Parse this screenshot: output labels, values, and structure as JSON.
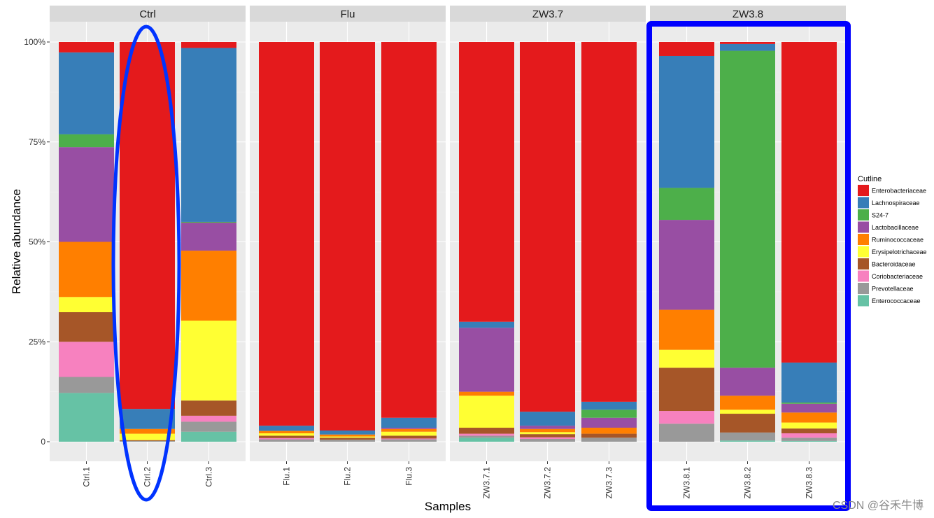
{
  "chart_data": {
    "type": "bar",
    "stacked": true,
    "xlabel": "Samples",
    "ylabel": "Relative abundance",
    "ylim": [
      0,
      1
    ],
    "y_ticks": [
      {
        "value": 0,
        "label": "0"
      },
      {
        "value": 0.25,
        "label": "25%"
      },
      {
        "value": 0.5,
        "label": "50%"
      },
      {
        "value": 0.75,
        "label": "75%"
      },
      {
        "value": 1,
        "label": "100%"
      }
    ],
    "legend": {
      "title": "Cutline",
      "position": "right",
      "entries": [
        {
          "name": "Enterobacteriaceae",
          "color": "#e41a1c"
        },
        {
          "name": "Lachnospiraceae",
          "color": "#377eb8"
        },
        {
          "name": "S24-7",
          "color": "#4daf4a"
        },
        {
          "name": "Lactobacillaceae",
          "color": "#984ea3"
        },
        {
          "name": "Ruminococcaceae",
          "color": "#ff7f00"
        },
        {
          "name": "Erysipelotrichaceae",
          "color": "#ffff33"
        },
        {
          "name": "Bacteroidaceae",
          "color": "#a65628"
        },
        {
          "name": "Coriobacteriaceae",
          "color": "#f781bf"
        },
        {
          "name": "Prevotellaceae",
          "color": "#999999"
        },
        {
          "name": "Enterococcaceae",
          "color": "#66c2a5"
        }
      ]
    },
    "stack_order_bottom_to_top": [
      "Enterococcaceae",
      "Prevotellaceae",
      "Coriobacteriaceae",
      "Bacteroidaceae",
      "Erysipelotrichaceae",
      "Ruminococcaceae",
      "Lactobacillaceae",
      "S24-7",
      "Lachnospiraceae",
      "Enterobacteriaceae"
    ],
    "facets": [
      {
        "name": "Ctrl",
        "samples": [
          {
            "name": "Ctrl.1",
            "values": {
              "Enterobacteriaceae": 0.026,
              "Lachnospiraceae": 0.205,
              "S24-7": 0.032,
              "Lactobacillaceae": 0.237,
              "Ruminococcaceae": 0.138,
              "Erysipelotrichaceae": 0.038,
              "Bacteroidaceae": 0.074,
              "Coriobacteriaceae": 0.088,
              "Prevotellaceae": 0.04,
              "Enterococcaceae": 0.122
            }
          },
          {
            "name": "Ctrl.2",
            "values": {
              "Enterobacteriaceae": 0.918,
              "Lachnospiraceae": 0.05,
              "S24-7": 0.0,
              "Lactobacillaceae": 0.0,
              "Ruminococcaceae": 0.012,
              "Erysipelotrichaceae": 0.016,
              "Bacteroidaceae": 0.002,
              "Coriobacteriaceae": 0.0,
              "Prevotellaceae": 0.002,
              "Enterococcaceae": 0.0
            }
          },
          {
            "name": "Ctrl.3",
            "values": {
              "Enterobacteriaceae": 0.015,
              "Lachnospiraceae": 0.435,
              "S24-7": 0.002,
              "Lactobacillaceae": 0.07,
              "Ruminococcaceae": 0.175,
              "Erysipelotrichaceae": 0.2,
              "Bacteroidaceae": 0.038,
              "Coriobacteriaceae": 0.015,
              "Prevotellaceae": 0.025,
              "Enterococcaceae": 0.025
            }
          }
        ]
      },
      {
        "name": "Flu",
        "samples": [
          {
            "name": "Flu.1",
            "values": {
              "Enterobacteriaceae": 0.96,
              "Lachnospiraceae": 0.013,
              "S24-7": 0.0,
              "Lactobacillaceae": 0.0,
              "Ruminococcaceae": 0.006,
              "Erysipelotrichaceae": 0.006,
              "Bacteroidaceae": 0.006,
              "Coriobacteriaceae": 0.003,
              "Prevotellaceae": 0.006,
              "Enterococcaceae": 0.0
            }
          },
          {
            "name": "Flu.2",
            "values": {
              "Enterobacteriaceae": 0.972,
              "Lachnospiraceae": 0.01,
              "S24-7": 0.0,
              "Lactobacillaceae": 0.0,
              "Ruminococcaceae": 0.005,
              "Erysipelotrichaceae": 0.003,
              "Bacteroidaceae": 0.005,
              "Coriobacteriaceae": 0.0,
              "Prevotellaceae": 0.005,
              "Enterococcaceae": 0.0
            }
          },
          {
            "name": "Flu.3",
            "values": {
              "Enterobacteriaceae": 0.94,
              "Lachnospiraceae": 0.025,
              "S24-7": 0.0,
              "Lactobacillaceae": 0.003,
              "Ruminococcaceae": 0.007,
              "Erysipelotrichaceae": 0.01,
              "Bacteroidaceae": 0.007,
              "Coriobacteriaceae": 0.002,
              "Prevotellaceae": 0.006,
              "Enterococcaceae": 0.0
            }
          }
        ]
      },
      {
        "name": "ZW3.7",
        "samples": [
          {
            "name": "ZW3.7.1",
            "values": {
              "Enterobacteriaceae": 0.7,
              "Lachnospiraceae": 0.015,
              "S24-7": 0.0,
              "Lactobacillaceae": 0.16,
              "Ruminococcaceae": 0.01,
              "Erysipelotrichaceae": 0.08,
              "Bacteroidaceae": 0.015,
              "Coriobacteriaceae": 0.005,
              "Prevotellaceae": 0.005,
              "Enterococcaceae": 0.01
            }
          },
          {
            "name": "ZW3.7.2",
            "values": {
              "Enterobacteriaceae": 0.925,
              "Lachnospiraceae": 0.035,
              "S24-7": 0.0,
              "Lactobacillaceae": 0.008,
              "Ruminococcaceae": 0.008,
              "Erysipelotrichaceae": 0.005,
              "Bacteroidaceae": 0.008,
              "Coriobacteriaceae": 0.004,
              "Prevotellaceae": 0.007,
              "Enterococcaceae": 0.0
            }
          },
          {
            "name": "ZW3.7.3",
            "values": {
              "Enterobacteriaceae": 0.9,
              "Lachnospiraceae": 0.02,
              "S24-7": 0.02,
              "Lactobacillaceae": 0.025,
              "Ruminococcaceae": 0.015,
              "Erysipelotrichaceae": 0.0,
              "Bacteroidaceae": 0.01,
              "Coriobacteriaceae": 0.0,
              "Prevotellaceae": 0.01,
              "Enterococcaceae": 0.0
            }
          }
        ]
      },
      {
        "name": "ZW3.8",
        "samples": [
          {
            "name": "ZW3.8.1",
            "values": {
              "Enterobacteriaceae": 0.035,
              "Lachnospiraceae": 0.33,
              "S24-7": 0.08,
              "Lactobacillaceae": 0.225,
              "Ruminococcaceae": 0.1,
              "Erysipelotrichaceae": 0.045,
              "Bacteroidaceae": 0.108,
              "Coriobacteriaceae": 0.032,
              "Prevotellaceae": 0.045,
              "Enterococcaceae": 0.0
            }
          },
          {
            "name": "ZW3.8.2",
            "values": {
              "Enterobacteriaceae": 0.005,
              "Lachnospiraceae": 0.017,
              "S24-7": 0.793,
              "Lactobacillaceae": 0.07,
              "Ruminococcaceae": 0.035,
              "Erysipelotrichaceae": 0.01,
              "Bacteroidaceae": 0.047,
              "Coriobacteriaceae": 0.0,
              "Prevotellaceae": 0.02,
              "Enterococcaceae": 0.003
            }
          },
          {
            "name": "ZW3.8.3",
            "values": {
              "Enterobacteriaceae": 0.802,
              "Lachnospiraceae": 0.1,
              "S24-7": 0.003,
              "Lactobacillaceae": 0.022,
              "Ruminococcaceae": 0.025,
              "Erysipelotrichaceae": 0.015,
              "Bacteroidaceae": 0.012,
              "Coriobacteriaceae": 0.011,
              "Prevotellaceae": 0.008,
              "Enterococcaceae": 0.002
            }
          }
        ]
      }
    ],
    "annotations": [
      {
        "shape": "ellipse",
        "color": "#0033ff",
        "target": "Ctrl.2"
      },
      {
        "shape": "rectangle",
        "color": "#0000ff",
        "target": "ZW3.8"
      }
    ]
  },
  "watermark": "CSDN @谷禾牛博"
}
